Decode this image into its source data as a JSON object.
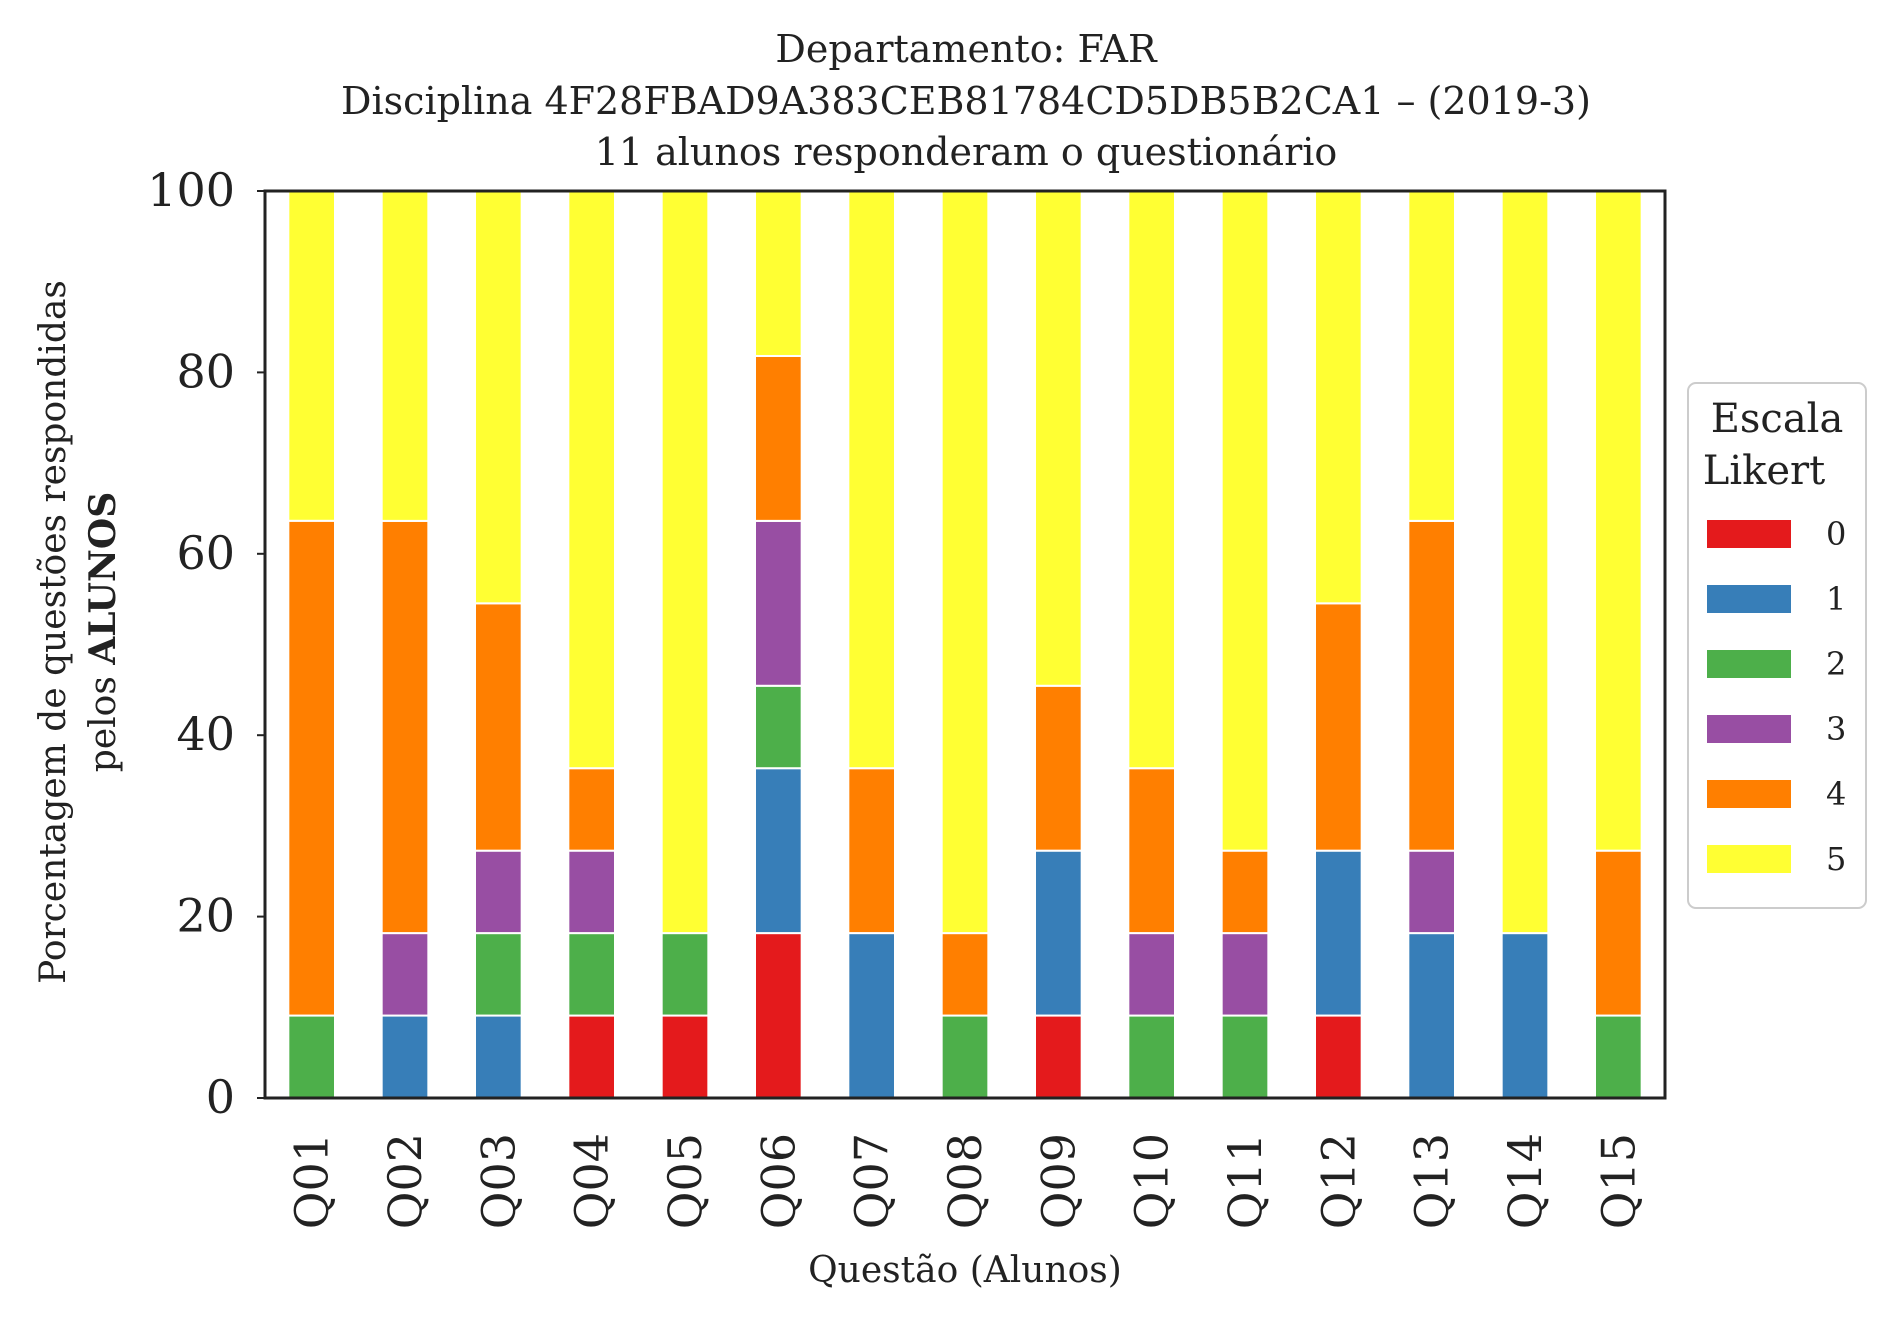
{
  "chart_data": {
    "type": "bar",
    "stacked": true,
    "title_lines": [
      "Departamento: FAR",
      "Disciplina 4F28FBAD9A383CEB81784CD5DB5B2CA1 – (2019-3)",
      "11 alunos responderam o questionário"
    ],
    "xlabel": "Questão (Alunos)",
    "ylabel_line1": "Porcentagem de questões respondidas",
    "ylabel_line2_prefix": "pelos ",
    "ylabel_line2_bold": "ALUNOS",
    "ylim": [
      0,
      100
    ],
    "yticks": [
      "0",
      "20",
      "40",
      "60",
      "80",
      "100"
    ],
    "grid": false,
    "legend": {
      "title_line1": "Escala",
      "title_line2": "Likert",
      "placement": "right"
    },
    "categories": [
      "Q01",
      "Q02",
      "Q03",
      "Q04",
      "Q05",
      "Q06",
      "Q07",
      "Q08",
      "Q09",
      "Q10",
      "Q11",
      "Q12",
      "Q13",
      "Q14",
      "Q15"
    ],
    "series": [
      {
        "name": "0",
        "color": "#e41a1c",
        "values": [
          0,
          0,
          0,
          9.09,
          9.09,
          18.18,
          0,
          0,
          9.09,
          0,
          0,
          9.09,
          0,
          0,
          0
        ]
      },
      {
        "name": "1",
        "color": "#377eb8",
        "values": [
          0,
          9.09,
          9.09,
          0,
          0,
          18.18,
          18.18,
          0,
          18.18,
          0,
          0,
          18.18,
          18.18,
          18.18,
          0
        ]
      },
      {
        "name": "2",
        "color": "#4daf4a",
        "values": [
          9.09,
          0,
          9.09,
          9.09,
          9.09,
          9.09,
          0,
          9.09,
          0,
          9.09,
          9.09,
          0,
          0,
          0,
          9.09
        ]
      },
      {
        "name": "3",
        "color": "#984ea3",
        "values": [
          0,
          9.09,
          9.09,
          9.09,
          0,
          18.18,
          0,
          0,
          0,
          9.09,
          9.09,
          0,
          9.09,
          0,
          0
        ]
      },
      {
        "name": "4",
        "color": "#ff7f00",
        "values": [
          54.55,
          45.45,
          27.27,
          9.09,
          0,
          18.18,
          18.18,
          9.09,
          18.18,
          18.18,
          9.09,
          27.27,
          36.36,
          0,
          18.18
        ]
      },
      {
        "name": "5",
        "color": "#ffff33",
        "values": [
          36.36,
          36.36,
          45.45,
          63.64,
          81.82,
          18.18,
          63.64,
          81.82,
          54.55,
          63.64,
          72.73,
          45.45,
          36.36,
          81.82,
          72.73
        ]
      }
    ]
  }
}
